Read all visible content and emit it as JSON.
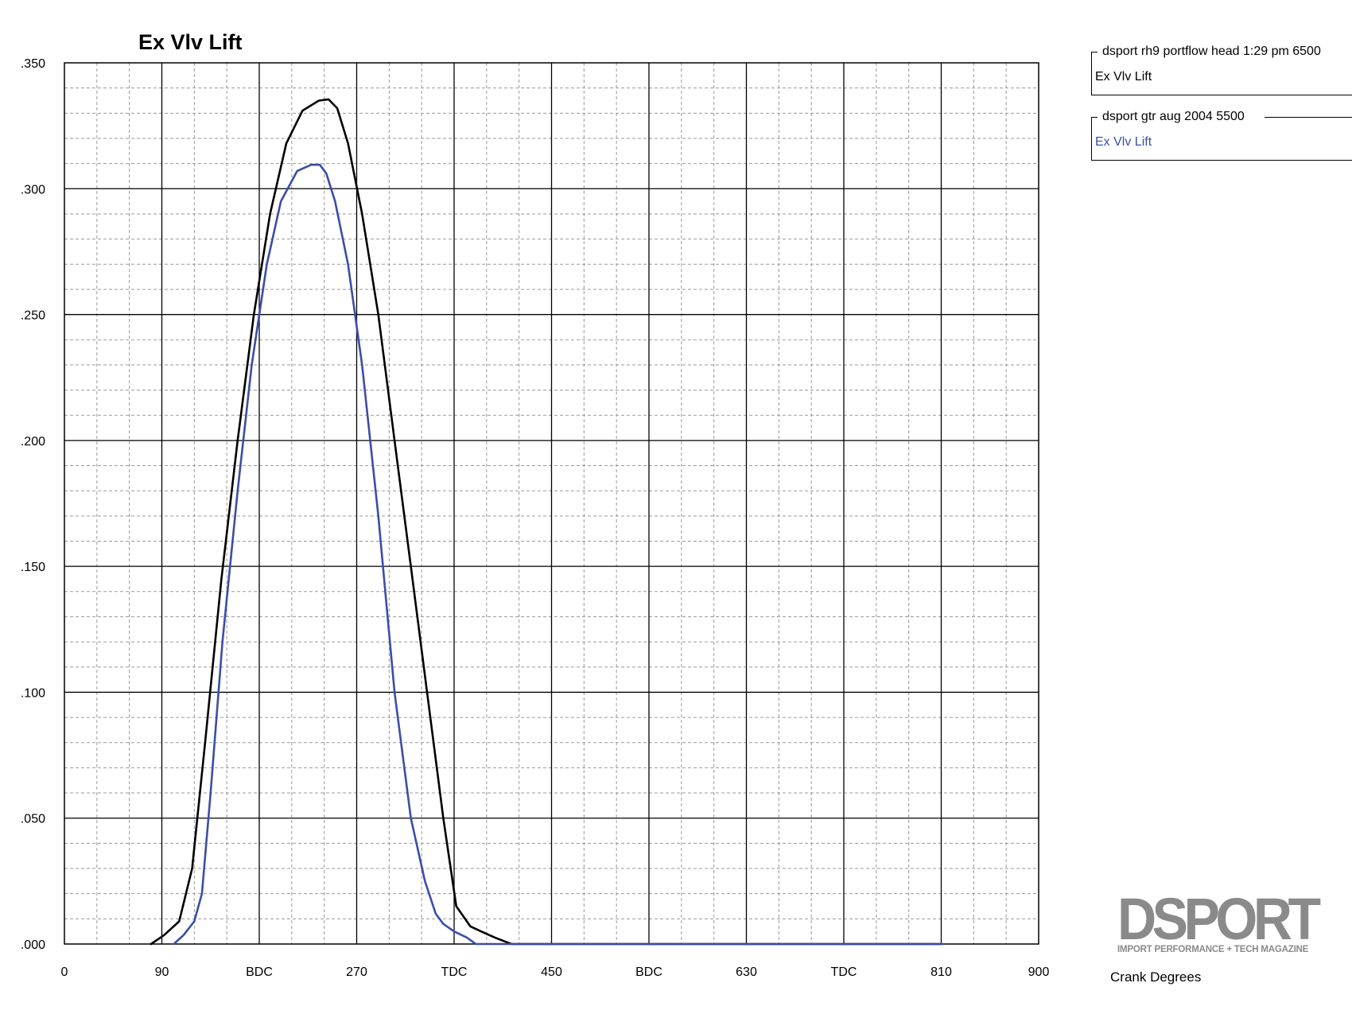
{
  "chart_data": {
    "type": "line",
    "title": "Ex Vlv Lift",
    "xlabel": "Crank Degrees",
    "ylabel": "",
    "xlim": [
      0,
      900
    ],
    "ylim": [
      0,
      0.35
    ],
    "x_ticks": [
      {
        "value": 0,
        "label": "0"
      },
      {
        "value": 90,
        "label": "90"
      },
      {
        "value": 180,
        "label": "BDC"
      },
      {
        "value": 270,
        "label": "270"
      },
      {
        "value": 360,
        "label": "TDC"
      },
      {
        "value": 450,
        "label": "450"
      },
      {
        "value": 540,
        "label": "BDC"
      },
      {
        "value": 630,
        "label": "630"
      },
      {
        "value": 720,
        "label": "TDC"
      },
      {
        "value": 810,
        "label": "810"
      },
      {
        "value": 900,
        "label": "900"
      }
    ],
    "y_ticks": [
      {
        "value": 0.0,
        "label": ".000"
      },
      {
        "value": 0.05,
        "label": ".050"
      },
      {
        "value": 0.1,
        "label": ".100"
      },
      {
        "value": 0.15,
        "label": ".150"
      },
      {
        "value": 0.2,
        "label": ".200"
      },
      {
        "value": 0.25,
        "label": ".250"
      },
      {
        "value": 0.3,
        "label": ".300"
      },
      {
        "value": 0.35,
        "label": ".350"
      }
    ],
    "grid": true,
    "legend_position": "top-right",
    "series": [
      {
        "name": "Ex Vlv Lift",
        "group": "dsport rh9 portflow head 1:29 pm  6500",
        "color": "#000000",
        "x": [
          80,
          92,
          106,
          118,
          130,
          145,
          160,
          175,
          190,
          205,
          220,
          235,
          244,
          252,
          262,
          275,
          290,
          305,
          320,
          335,
          350,
          362,
          375,
          385,
          398,
          413,
          430,
          810
        ],
        "y": [
          0.0,
          0.0035,
          0.009,
          0.03,
          0.08,
          0.145,
          0.2,
          0.25,
          0.29,
          0.318,
          0.331,
          0.335,
          0.3355,
          0.332,
          0.318,
          0.29,
          0.25,
          0.2,
          0.15,
          0.1,
          0.05,
          0.015,
          0.007,
          0.005,
          0.0025,
          0.0,
          0.0,
          0.0
        ]
      },
      {
        "name": "Ex Vlv Lift",
        "group": "dsport gtr aug 2004 5500",
        "color": "#3a4ea8",
        "x": [
          101,
          110,
          120,
          127,
          135,
          146,
          160,
          173,
          187,
          200,
          215,
          228,
          236,
          242,
          250,
          262,
          275,
          290,
          305,
          320,
          333,
          343,
          350,
          360,
          372,
          380,
          810
        ],
        "y": [
          0.0,
          0.0035,
          0.009,
          0.02,
          0.06,
          0.12,
          0.18,
          0.23,
          0.27,
          0.295,
          0.307,
          0.3095,
          0.3095,
          0.306,
          0.295,
          0.27,
          0.23,
          0.17,
          0.1,
          0.05,
          0.025,
          0.012,
          0.008,
          0.005,
          0.0025,
          0.0,
          0.0
        ]
      }
    ]
  },
  "legend": [
    {
      "group": "dsport rh9 portflow head 1:29 pm  6500",
      "series": "Ex Vlv Lift",
      "color": "#000000"
    },
    {
      "group": "dsport gtr aug 2004 5500",
      "series": "Ex Vlv Lift",
      "color": "#3a4ea8"
    }
  ],
  "logo": {
    "word": "DSPORT",
    "tagline": "IMPORT PERFORMANCE + TECH MAGAZINE",
    "color": "#8a8a8a"
  }
}
